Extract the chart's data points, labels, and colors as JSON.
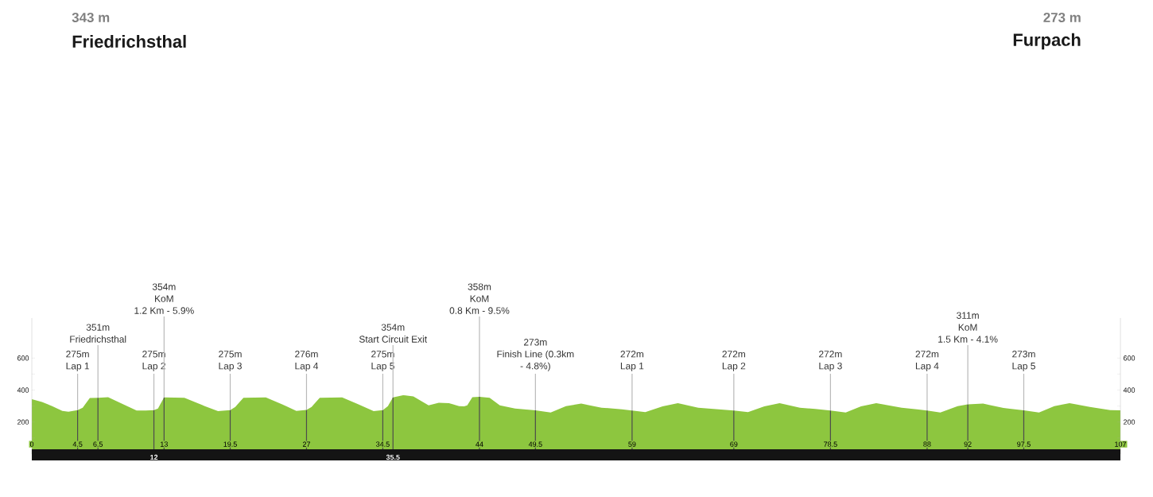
{
  "chart_data": {
    "type": "area",
    "color": "#8dc63f",
    "x": [
      0,
      1,
      2,
      3,
      3.6,
      4.5,
      5,
      5.7,
      6.5,
      7.5,
      9,
      10.3,
      11.2,
      12,
      12.4,
      13,
      15,
      17,
      18.3,
      19.5,
      20,
      20.8,
      23,
      25,
      26,
      27,
      27.5,
      28.3,
      30.5,
      32.5,
      33.6,
      34.5,
      35,
      35.5,
      36.5,
      37.5,
      39,
      40,
      41,
      42,
      42.5,
      42.8,
      43.3,
      44,
      45,
      46,
      47.5,
      49.5,
      51,
      52.5,
      54,
      56,
      58,
      59,
      60.3,
      62,
      63.5,
      65.5,
      67.5,
      69,
      70.4,
      72,
      73.5,
      75.5,
      77,
      78.5,
      80,
      81.5,
      83,
      85.5,
      87,
      88,
      89.3,
      91,
      92,
      93.5,
      95.5,
      97.5,
      99,
      100.5,
      102,
      104,
      106,
      107
    ],
    "values": [
      343,
      325,
      300,
      270,
      265,
      275,
      290,
      350,
      351,
      355,
      310,
      272,
      272,
      275,
      285,
      354,
      352,
      300,
      268,
      275,
      295,
      352,
      354,
      300,
      270,
      276,
      295,
      352,
      354,
      300,
      268,
      275,
      300,
      354,
      368,
      360,
      305,
      320,
      318,
      300,
      298,
      305,
      355,
      358,
      352,
      305,
      285,
      273,
      260,
      300,
      315,
      290,
      280,
      272,
      262,
      298,
      318,
      290,
      280,
      272,
      262,
      298,
      318,
      290,
      282,
      272,
      260,
      298,
      318,
      290,
      280,
      272,
      260,
      300,
      311,
      315,
      288,
      273,
      260,
      300,
      318,
      295,
      275,
      273
    ],
    "xlim": [
      0,
      107
    ],
    "ylim": [
      0,
      850
    ],
    "xticks": [
      0,
      4.5,
      6.5,
      13,
      19.5,
      27,
      34.5,
      44,
      49.5,
      59,
      69,
      78.5,
      88,
      92,
      97.5,
      107
    ],
    "x2lim": [
      0,
      107
    ],
    "x2ticks": [
      12,
      35.5
    ],
    "yticks": [
      {
        "value": 100,
        "label": null
      },
      200,
      {
        "value": 300,
        "label": null
      },
      400,
      {
        "value": 500,
        "label": null
      },
      600
    ],
    "y2lim": [
      0,
      850
    ],
    "y2ticks": [
      {
        "value": 100,
        "label": null
      },
      200,
      {
        "value": 300,
        "label": null
      },
      400,
      {
        "value": 500,
        "label": null
      },
      600
    ],
    "grid": false,
    "ref_lines": [
      {
        "axis": "x",
        "value": 4.5,
        "color": "#4c4c4c"
      },
      {
        "axis": "x",
        "value": 6.5,
        "color": "#4c4c4c"
      },
      {
        "axis": "x",
        "value": 12,
        "color": "#4c4c4c"
      },
      {
        "axis": "x",
        "value": 13,
        "color": "#4c4c4c"
      },
      {
        "axis": "x",
        "value": 19.5,
        "color": "#4c4c4c"
      },
      {
        "axis": "x",
        "value": 27,
        "color": "#4c4c4c"
      },
      {
        "axis": "x",
        "value": 34.5,
        "color": "#4c4c4c"
      },
      {
        "axis": "x",
        "value": 35.5,
        "color": "#4c4c4c"
      },
      {
        "axis": "x",
        "value": 44,
        "color": "#4c4c4c"
      },
      {
        "axis": "x",
        "value": 49.5,
        "color": "#4c4c4c"
      },
      {
        "axis": "x",
        "value": 59,
        "color": "#4c4c4c"
      },
      {
        "axis": "x",
        "value": 69,
        "color": "#4c4c4c"
      },
      {
        "axis": "x",
        "value": 78.5,
        "color": "#4c4c4c"
      },
      {
        "axis": "x",
        "value": 88,
        "color": "#4c4c4c"
      },
      {
        "axis": "x",
        "value": 92,
        "color": "#4c4c4c"
      },
      {
        "axis": "x",
        "value": 97.5,
        "color": "#4c4c4c"
      }
    ],
    "annotations": [
      "275m",
      {
        "text": "Lap 1",
        "x": 4.5,
        "y": 275
      },
      "351m",
      {
        "text": "Friedrichsthal",
        "x": 6.5,
        "y": 351
      },
      "275m",
      {
        "text": "Lap 2",
        "x": 12,
        "y": 275
      },
      "354m",
      "KoM",
      {
        "text": "1.2 Km - 5.9%",
        "x": 13,
        "y": 354
      },
      "275m",
      {
        "text": "Lap 3",
        "x": 19.5,
        "y": 275
      },
      "276m",
      {
        "text": "Lap 4",
        "x": 27,
        "y": 276
      },
      "275m",
      {
        "text": "Lap 5",
        "x": 34.5,
        "y": 275
      },
      "354m",
      {
        "text": "Start Circuit Exit",
        "x": 35.5,
        "y": 354
      },
      "358m",
      "KoM",
      {
        "text": "0.8 Km - 9.5%",
        "x": 44,
        "y": 358
      },
      "273m",
      "Finish Line (0.3km",
      {
        "text": "- 4.8%)",
        "x": 49.5,
        "y": 273
      },
      "272m",
      {
        "text": "Lap 1",
        "x": 59,
        "y": 272
      },
      "272m",
      {
        "text": "Lap 2",
        "x": 69,
        "y": 272
      },
      "272m",
      {
        "text": "Lap 3",
        "x": 78.5,
        "y": 272
      },
      "272m",
      {
        "text": "Lap 4",
        "x": 88,
        "y": 272
      },
      "311m",
      "KoM",
      {
        "text": "1.5 Km - 4.1%",
        "x": 92,
        "y": 311
      },
      "273m",
      {
        "text": "Lap 5",
        "x": 97.5,
        "y": 273
      },
      "343 m",
      "Friedrichsthal",
      "273 m",
      "Furpach"
    ]
  }
}
